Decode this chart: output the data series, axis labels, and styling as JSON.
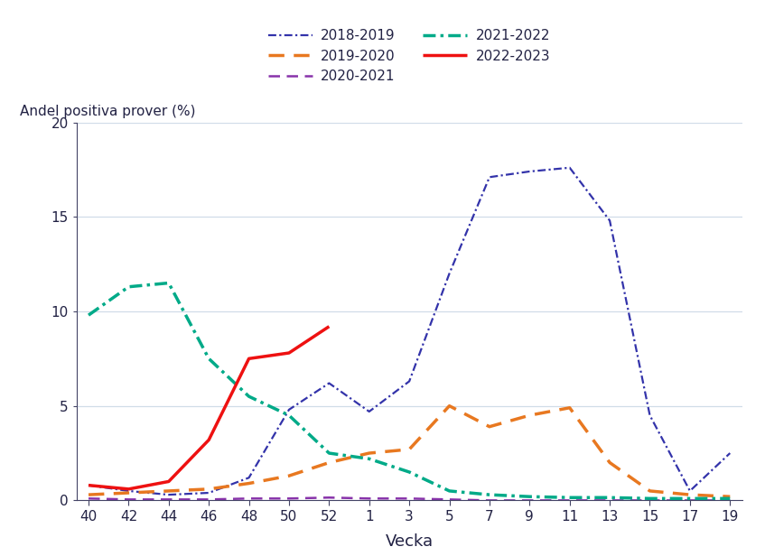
{
  "title": "",
  "ylabel": "Andel positiva prover (%)",
  "xlabel": "Vecka",
  "background_color": "#ffffff",
  "plot_bg": "#ffffff",
  "ylim": [
    0,
    20
  ],
  "x_tick_labels": [
    "40",
    "42",
    "44",
    "46",
    "48",
    "50",
    "52",
    "1",
    "3",
    "5",
    "7",
    "9",
    "11",
    "13",
    "15",
    "17",
    "19"
  ],
  "series": [
    {
      "label": "2018-2019",
      "color": "#3333aa",
      "linestyle": "dashdot",
      "linewidth": 1.6,
      "x_autumn": [
        40,
        42,
        44,
        46,
        48,
        50,
        52
      ],
      "y_autumn": [
        0.8,
        0.5,
        0.3,
        0.4,
        1.2,
        4.8,
        6.2
      ],
      "x_spring": [
        1,
        3,
        5,
        7,
        9,
        11,
        13,
        15,
        17,
        19
      ],
      "y_spring": [
        4.7,
        6.3,
        12.0,
        17.1,
        17.4,
        17.6,
        14.8,
        4.5,
        0.5,
        2.5
      ]
    },
    {
      "label": "2019-2020",
      "color": "#e87820",
      "linestyle": "dashed",
      "linewidth": 2.5,
      "x_autumn": [
        40,
        42,
        44,
        46,
        48,
        50,
        52
      ],
      "y_autumn": [
        0.3,
        0.4,
        0.5,
        0.6,
        0.9,
        1.3,
        2.0
      ],
      "x_spring": [
        1,
        3,
        5,
        7,
        9,
        11,
        13,
        15,
        17,
        19
      ],
      "y_spring": [
        2.5,
        2.7,
        5.0,
        3.9,
        4.5,
        4.9,
        2.0,
        0.5,
        0.3,
        0.2
      ]
    },
    {
      "label": "2020-2021",
      "color": "#8833aa",
      "linestyle": "dashed",
      "linewidth": 1.8,
      "x_autumn": [
        40,
        42,
        44,
        46,
        48,
        50,
        52
      ],
      "y_autumn": [
        0.1,
        0.05,
        0.05,
        0.05,
        0.1,
        0.1,
        0.15
      ],
      "x_spring": [
        1,
        3,
        5,
        7,
        9,
        11,
        13,
        15,
        17,
        19
      ],
      "y_spring": [
        0.1,
        0.1,
        0.05,
        0.0,
        0.0,
        0.0,
        0.0,
        0.0,
        0.0,
        0.0
      ]
    },
    {
      "label": "2021-2022",
      "color": "#00aa88",
      "linestyle": "dashdot",
      "linewidth": 2.5,
      "x_autumn": [
        40,
        42,
        44,
        46,
        48,
        50,
        52
      ],
      "y_autumn": [
        9.8,
        11.3,
        11.5,
        7.5,
        5.5,
        4.5,
        2.5
      ],
      "x_spring": [
        1,
        3,
        5,
        7,
        9,
        11,
        13,
        15,
        17,
        19
      ],
      "y_spring": [
        2.2,
        1.5,
        0.5,
        0.3,
        0.2,
        0.15,
        0.15,
        0.1,
        0.1,
        0.1
      ]
    },
    {
      "label": "2022-2023",
      "color": "#ee1111",
      "linestyle": "solid",
      "linewidth": 2.5,
      "x_autumn": [
        40,
        42,
        44,
        46,
        48,
        50,
        52
      ],
      "y_autumn": [
        0.8,
        0.6,
        1.0,
        3.2,
        7.5,
        7.8,
        9.2
      ],
      "x_spring": [],
      "y_spring": []
    }
  ]
}
